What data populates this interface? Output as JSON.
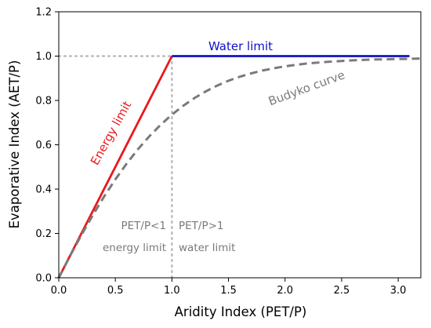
{
  "chart_data": {
    "type": "line",
    "xlabel": "Aridity Index (PET/P)",
    "ylabel": "Evaporative Index (AET/P)",
    "xlim": [
      0.0,
      3.2
    ],
    "ylim": [
      0.0,
      1.2
    ],
    "xticks": [
      "0.0",
      "0.5",
      "1.0",
      "1.5",
      "2.0",
      "2.5",
      "3.0"
    ],
    "yticks": [
      "0.0",
      "0.2",
      "0.4",
      "0.6",
      "0.8",
      "1.0",
      "1.2"
    ],
    "grid": false,
    "series": [
      {
        "name": "Energy limit",
        "color": "#e8191d",
        "style": "solid",
        "x": [
          0.0,
          1.0
        ],
        "y": [
          0.0,
          1.0
        ]
      },
      {
        "name": "Water limit",
        "color": "#1010c8",
        "style": "solid",
        "x": [
          1.0,
          3.1
        ],
        "y": [
          1.0,
          1.0
        ]
      },
      {
        "name": "Budyko curve",
        "color": "#7a7a7a",
        "style": "dashed",
        "x": [
          0.0,
          0.1,
          0.2,
          0.3,
          0.4,
          0.5,
          0.6,
          0.7,
          0.8,
          0.9,
          1.0,
          1.1,
          1.2,
          1.3,
          1.4,
          1.5,
          1.6,
          1.7,
          1.8,
          1.9,
          2.0,
          2.1,
          2.2,
          2.3,
          2.4,
          2.5,
          2.6,
          2.7,
          2.8,
          2.9,
          3.0,
          3.1,
          3.2
        ],
        "y": [
          0.0,
          0.099,
          0.193,
          0.282,
          0.366,
          0.444,
          0.515,
          0.58,
          0.638,
          0.69,
          0.736,
          0.776,
          0.811,
          0.841,
          0.867,
          0.889,
          0.907,
          0.922,
          0.935,
          0.945,
          0.954,
          0.961,
          0.967,
          0.971,
          0.975,
          0.978,
          0.981,
          0.983,
          0.985,
          0.986,
          0.987,
          0.988,
          0.989
        ]
      }
    ],
    "reference_lines": {
      "color": "#b5b5b5",
      "horizontal_y": 1.0,
      "horizontal_x_range": [
        0.0,
        1.0
      ],
      "vertical_x": 1.0,
      "vertical_y_range": [
        0.0,
        1.0
      ]
    },
    "annotations": {
      "water_limit": "Water limit",
      "energy_limit": "Energy limit",
      "budyko_curve": "Budyko curve",
      "left_ratio": "PET/P<1",
      "left_regime": "energy limit",
      "right_ratio": "PET/P>1",
      "right_regime": "water limit"
    }
  }
}
